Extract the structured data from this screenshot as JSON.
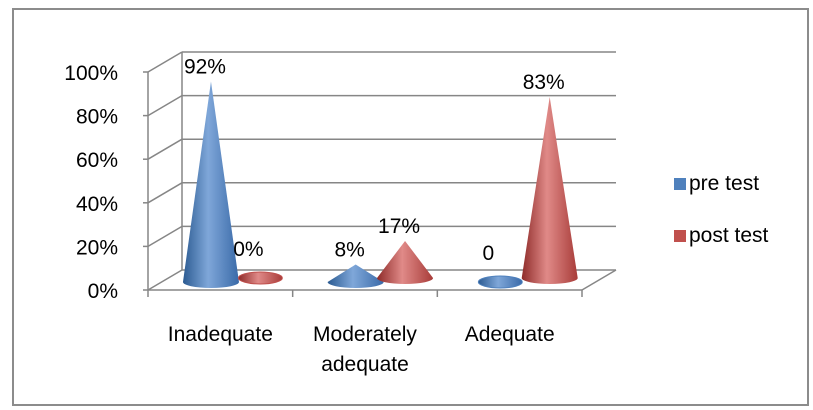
{
  "chart_data": {
    "type": "bar",
    "shape": "3d-cone",
    "categories": [
      [
        "Inadequate"
      ],
      [
        "Moderately",
        "adequate"
      ],
      [
        "Adequate"
      ]
    ],
    "series": [
      {
        "name": "pre test",
        "color": "#4f81bd",
        "values": [
          92,
          8,
          0
        ],
        "labels": [
          "92%",
          "8%",
          "0"
        ]
      },
      {
        "name": "post test",
        "color": "#c0504d",
        "values": [
          0,
          17,
          83
        ],
        "labels": [
          "0%",
          "17%",
          "83%"
        ]
      }
    ],
    "y_ticks": [
      "0%",
      "20%",
      "40%",
      "60%",
      "80%",
      "100%"
    ],
    "ylim": [
      0,
      100
    ],
    "grid": true,
    "legend_position": "right"
  }
}
